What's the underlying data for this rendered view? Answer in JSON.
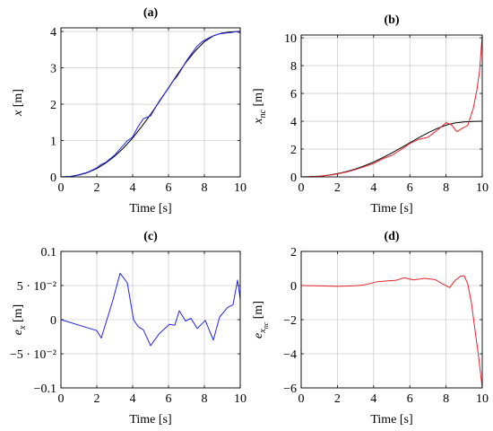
{
  "chart_data": [
    {
      "id": "a",
      "type": "line",
      "title": "(a)",
      "xlabel": "Time [s]",
      "ylabel": "x [m]",
      "xlim": [
        0,
        10
      ],
      "ylim": [
        0,
        4.1
      ],
      "grid": true,
      "xticks": [
        0,
        2,
        4,
        6,
        8,
        10
      ],
      "xtick_labels": [
        "0",
        "2",
        "4",
        "6",
        "8",
        "10"
      ],
      "yticks": [
        0,
        1,
        2,
        3,
        4
      ],
      "ytick_labels": [
        "0",
        "1",
        "2",
        "3",
        "4"
      ],
      "series": [
        {
          "color": "#000000",
          "x": [
            0,
            0.5,
            1,
            1.5,
            2,
            2.5,
            3,
            3.5,
            4,
            4.5,
            5,
            5.5,
            6,
            6.5,
            7,
            7.5,
            8,
            8.5,
            9,
            9.5,
            10
          ],
          "y": [
            0,
            0.01,
            0.05,
            0.12,
            0.23,
            0.38,
            0.57,
            0.8,
            1.07,
            1.38,
            1.72,
            2.08,
            2.45,
            2.82,
            3.17,
            3.47,
            3.72,
            3.88,
            3.96,
            3.99,
            4.0
          ]
        },
        {
          "color": "#2323e8",
          "x": [
            0,
            0.5,
            1,
            1.5,
            2,
            2.2,
            2.5,
            3,
            3.3,
            3.7,
            4,
            4.3,
            4.6,
            5,
            5.5,
            6,
            6.2,
            6.5,
            6.7,
            7,
            7.3,
            7.6,
            7.9,
            8.4,
            8.8,
            9.2,
            9.5,
            9.8,
            10
          ],
          "y": [
            0,
            0.01,
            0.06,
            0.13,
            0.25,
            0.33,
            0.4,
            0.6,
            0.77,
            0.99,
            1.1,
            1.38,
            1.6,
            1.68,
            2.1,
            2.44,
            2.6,
            2.78,
            2.94,
            3.19,
            3.4,
            3.6,
            3.73,
            3.86,
            3.93,
            3.96,
            3.97,
            4.0,
            3.96
          ]
        }
      ]
    },
    {
      "id": "b",
      "type": "line",
      "title": "(b)",
      "xlabel": "Time [s]",
      "ylabel": "x_nc [m]",
      "xlim": [
        0,
        10
      ],
      "ylim": [
        0,
        10.2
      ],
      "grid": true,
      "xticks": [
        0,
        2,
        4,
        6,
        8,
        10
      ],
      "xtick_labels": [
        "0",
        "2",
        "4",
        "6",
        "8",
        "10"
      ],
      "yticks": [
        0,
        2,
        4,
        6,
        8,
        10
      ],
      "ytick_labels": [
        "0",
        "2",
        "4",
        "6",
        "8",
        "10"
      ],
      "series": [
        {
          "color": "#000000",
          "x": [
            0,
            0.5,
            1,
            1.5,
            2,
            2.5,
            3,
            3.5,
            4,
            4.5,
            5,
            5.5,
            6,
            6.5,
            7,
            7.5,
            8,
            8.5,
            9,
            9.5,
            10
          ],
          "y": [
            0,
            0.01,
            0.05,
            0.12,
            0.23,
            0.38,
            0.57,
            0.8,
            1.07,
            1.38,
            1.72,
            2.08,
            2.45,
            2.82,
            3.17,
            3.47,
            3.72,
            3.88,
            3.96,
            3.99,
            4.0
          ]
        },
        {
          "color": "#e8232e",
          "x": [
            0,
            0.5,
            1,
            1.5,
            2,
            2.5,
            3,
            3.5,
            4,
            4.5,
            5,
            5.5,
            6,
            6.5,
            7,
            7.3,
            7.6,
            8,
            8.3,
            8.6,
            8.9,
            9.2,
            9.5,
            9.7,
            9.85,
            10
          ],
          "y": [
            0,
            0.01,
            0.05,
            0.11,
            0.21,
            0.35,
            0.53,
            0.74,
            0.97,
            1.3,
            1.55,
            1.95,
            2.4,
            2.7,
            2.85,
            3.15,
            3.45,
            3.9,
            3.75,
            3.25,
            3.5,
            3.7,
            4.9,
            6.2,
            7.6,
            10.2
          ]
        }
      ]
    },
    {
      "id": "c",
      "type": "line",
      "title": "(c)",
      "xlabel": "Time [s]",
      "ylabel": "e_x [m]",
      "xlim": [
        0,
        10
      ],
      "ylim": [
        -0.1,
        0.1
      ],
      "grid": true,
      "xticks": [
        0,
        2,
        4,
        6,
        8,
        10
      ],
      "xtick_labels": [
        "0",
        "2",
        "4",
        "6",
        "8",
        "10"
      ],
      "yticks": [
        -0.1,
        -0.05,
        0,
        0.05,
        0.1
      ],
      "ytick_labels": [
        "−0.1",
        "−5 · 10⁻²",
        "0",
        "5 · 10⁻²",
        "0.1"
      ],
      "series": [
        {
          "color": "#2323e8",
          "x": [
            0,
            2.0,
            2.25,
            2.9,
            3.3,
            3.7,
            4.05,
            4.3,
            4.6,
            5.0,
            5.5,
            6.05,
            6.35,
            6.6,
            6.95,
            7.25,
            7.6,
            8.05,
            8.5,
            8.85,
            9.3,
            9.6,
            9.85,
            10.0
          ],
          "y": [
            0,
            -0.016,
            -0.027,
            0.029,
            0.068,
            0.054,
            0.0,
            -0.01,
            -0.015,
            -0.038,
            -0.02,
            -0.007,
            -0.008,
            0.013,
            -0.002,
            0.002,
            -0.013,
            -0.001,
            -0.03,
            0.004,
            0.018,
            0.022,
            0.058,
            0.03
          ]
        }
      ]
    },
    {
      "id": "d",
      "type": "line",
      "title": "(d)",
      "xlabel": "Time [s]",
      "ylabel": "e_xnc [m]",
      "xlim": [
        0,
        10
      ],
      "ylim": [
        -6,
        2
      ],
      "grid": true,
      "xticks": [
        0,
        2,
        4,
        6,
        8,
        10
      ],
      "xtick_labels": [
        "0",
        "2",
        "4",
        "6",
        "8",
        "10"
      ],
      "yticks": [
        -6,
        -4,
        -2,
        0,
        2
      ],
      "ytick_labels": [
        "−6",
        "−4",
        "−2",
        "0",
        "2"
      ],
      "series": [
        {
          "color": "#e8232e",
          "x": [
            0,
            1,
            2,
            3,
            3.5,
            4.2,
            4.8,
            5.2,
            5.7,
            6.2,
            6.8,
            7.4,
            7.8,
            8.2,
            8.5,
            8.8,
            9.0,
            9.2,
            9.4,
            9.6,
            9.8,
            10.0
          ],
          "y": [
            0,
            -0.02,
            -0.05,
            -0.01,
            0.04,
            0.22,
            0.28,
            0.3,
            0.45,
            0.33,
            0.42,
            0.35,
            0.1,
            -0.12,
            0.3,
            0.55,
            0.58,
            0.1,
            -1.0,
            -2.6,
            -4.2,
            -6.0
          ]
        }
      ]
    }
  ]
}
